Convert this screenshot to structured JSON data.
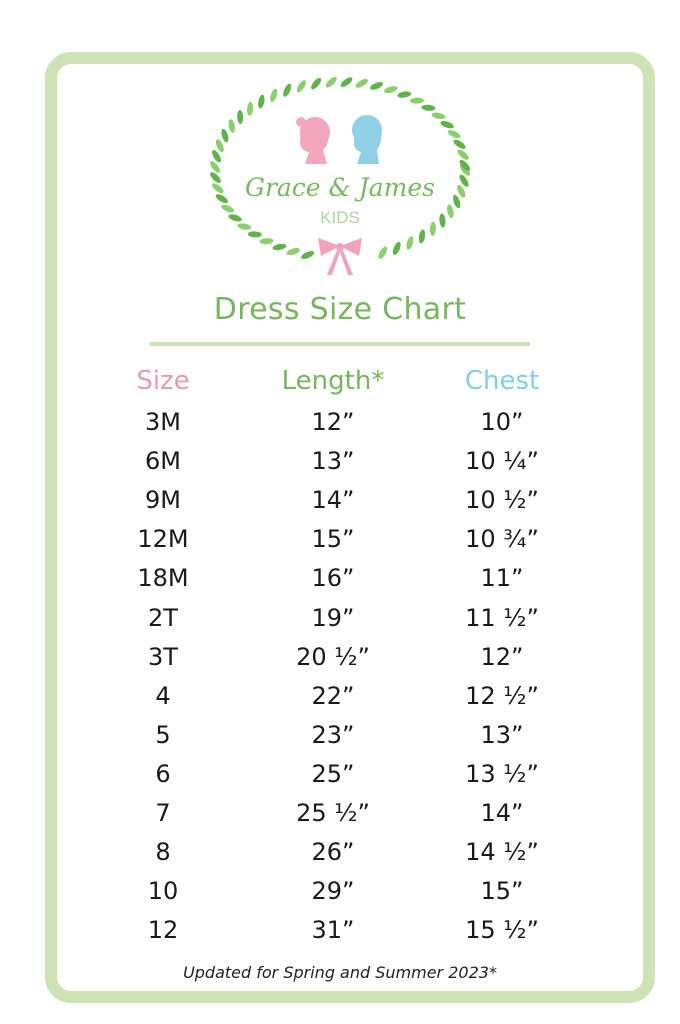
{
  "logo": {
    "brand": "Grace & James",
    "sub": "KIDS"
  },
  "title": "Dress Size Chart",
  "headers": {
    "size": "Size",
    "length": "Length*",
    "chest": "Chest"
  },
  "colors": {
    "size_header": "#e59ab3",
    "length_header": "#77b55f",
    "chest_header": "#86cde0",
    "border": "#cde3b5"
  },
  "rows": [
    {
      "size": "3M",
      "length": "12”",
      "chest": "10”"
    },
    {
      "size": "6M",
      "length": "13”",
      "chest": "10 ¼”"
    },
    {
      "size": "9M",
      "length": "14”",
      "chest": "10 ½”"
    },
    {
      "size": "12M",
      "length": "15”",
      "chest": "10 ¾”"
    },
    {
      "size": "18M",
      "length": "16”",
      "chest": "11”"
    },
    {
      "size": "2T",
      "length": "19”",
      "chest": "11 ½”"
    },
    {
      "size": "3T",
      "length": "20 ½”",
      "chest": "12”"
    },
    {
      "size": "4",
      "length": "22”",
      "chest": "12 ½”"
    },
    {
      "size": "5",
      "length": "23”",
      "chest": "13”"
    },
    {
      "size": "6",
      "length": "25”",
      "chest": "13 ½”"
    },
    {
      "size": "7",
      "length": "25 ½”",
      "chest": "14”"
    },
    {
      "size": "8",
      "length": "26”",
      "chest": "14 ½”"
    },
    {
      "size": "10",
      "length": "29”",
      "chest": "15”"
    },
    {
      "size": "12",
      "length": "31”",
      "chest": "15 ½”"
    }
  ],
  "footer": "Updated for Spring and Summer 2023*"
}
